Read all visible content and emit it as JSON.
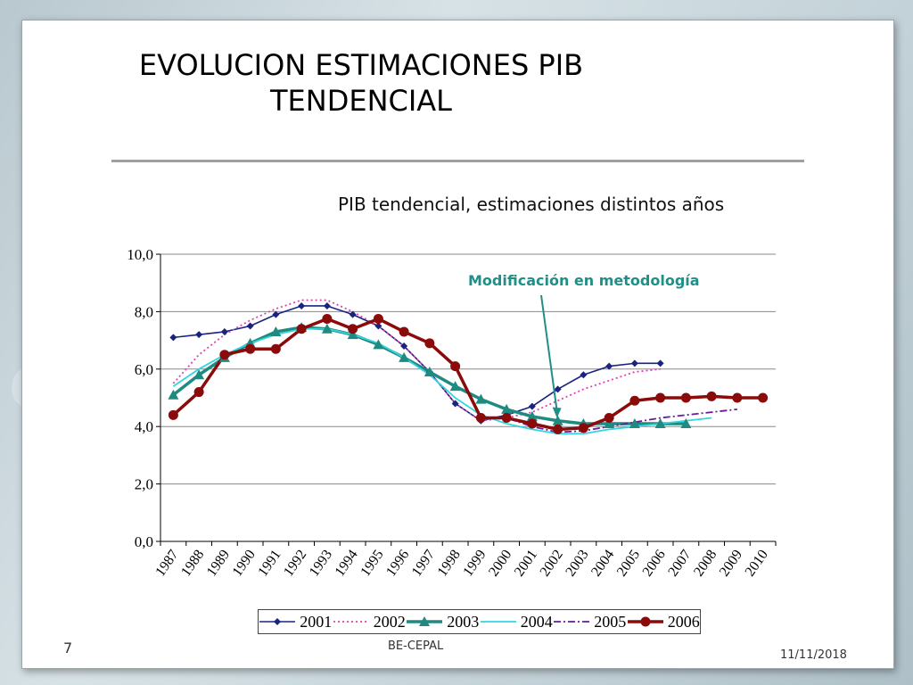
{
  "slide": {
    "title_line1": "EVOLUCION ESTIMACIONES PIB",
    "title_line2": "TENDENCIAL",
    "subtitle": "PIB tendencial, estimaciones distintos años",
    "annotation": "Modificación en metodología",
    "slide_number": "7",
    "footer": "BE-CEPAL",
    "date": "11/11/2018"
  },
  "chart_data": {
    "type": "line",
    "title": "PIB tendencial, estimaciones distintos años",
    "xlabel": "",
    "ylabel": "",
    "categories": [
      "1987",
      "1988",
      "1989",
      "1990",
      "1991",
      "1992",
      "1993",
      "1994",
      "1995",
      "1996",
      "1997",
      "1998",
      "1999",
      "2000",
      "2001",
      "2002",
      "2003",
      "2004",
      "2005",
      "2006",
      "2007",
      "2008",
      "2009",
      "2010"
    ],
    "yticks": [
      "0,0",
      "2,0",
      "4,0",
      "6,0",
      "8,0",
      "10,0"
    ],
    "ylim": [
      0,
      10
    ],
    "grid": true,
    "legend": "bottom",
    "annotation": {
      "text": "Modificación en metodología",
      "points_to": "2002"
    },
    "series": [
      {
        "name": "2001",
        "color": "#1a237e",
        "style": "solid-diamond",
        "values": [
          7.1,
          7.2,
          7.3,
          7.5,
          7.9,
          8.2,
          8.2,
          7.9,
          7.5,
          6.8,
          5.9,
          4.8,
          4.2,
          4.4,
          4.7,
          5.3,
          5.8,
          6.1,
          6.2,
          6.2,
          null,
          null,
          null,
          null
        ]
      },
      {
        "name": "2002",
        "color": "#e040b0",
        "style": "dotted",
        "values": [
          5.5,
          6.5,
          7.2,
          7.7,
          8.1,
          8.4,
          8.4,
          8.0,
          7.5,
          6.8,
          5.9,
          4.8,
          4.2,
          4.3,
          4.5,
          4.9,
          5.3,
          5.6,
          5.9,
          6.0,
          null,
          null,
          null,
          null
        ]
      },
      {
        "name": "2003",
        "color": "#1f8a80",
        "style": "solid-triangle",
        "values": [
          5.1,
          5.8,
          6.4,
          6.9,
          7.3,
          7.45,
          7.4,
          7.2,
          6.85,
          6.4,
          5.9,
          5.4,
          4.95,
          4.6,
          4.35,
          4.2,
          4.1,
          4.1,
          4.1,
          4.1,
          4.1,
          null,
          null,
          null
        ]
      },
      {
        "name": "2004",
        "color": "#33d6e0",
        "style": "solid",
        "values": [
          5.4,
          6.0,
          6.5,
          6.9,
          7.2,
          7.4,
          7.4,
          7.2,
          6.9,
          6.4,
          5.8,
          5.0,
          4.4,
          4.1,
          3.9,
          3.75,
          3.75,
          3.9,
          4.0,
          4.1,
          4.2,
          4.3,
          null,
          null
        ]
      },
      {
        "name": "2005",
        "color": "#6a1b9a",
        "style": "dash-dot",
        "values": [
          null,
          null,
          null,
          null,
          null,
          null,
          null,
          null,
          null,
          null,
          null,
          null,
          4.3,
          4.3,
          4.0,
          3.8,
          3.85,
          4.0,
          4.15,
          4.3,
          4.4,
          4.5,
          4.6,
          null
        ]
      },
      {
        "name": "2006",
        "color": "#8b0a0a",
        "style": "solid-circle",
        "values": [
          4.4,
          5.2,
          6.5,
          6.7,
          6.7,
          7.4,
          7.75,
          7.4,
          7.75,
          7.3,
          6.9,
          6.1,
          4.3,
          4.3,
          4.1,
          3.9,
          3.95,
          4.3,
          4.9,
          5.0,
          5.0,
          5.05,
          5.0,
          5.0
        ]
      }
    ]
  }
}
